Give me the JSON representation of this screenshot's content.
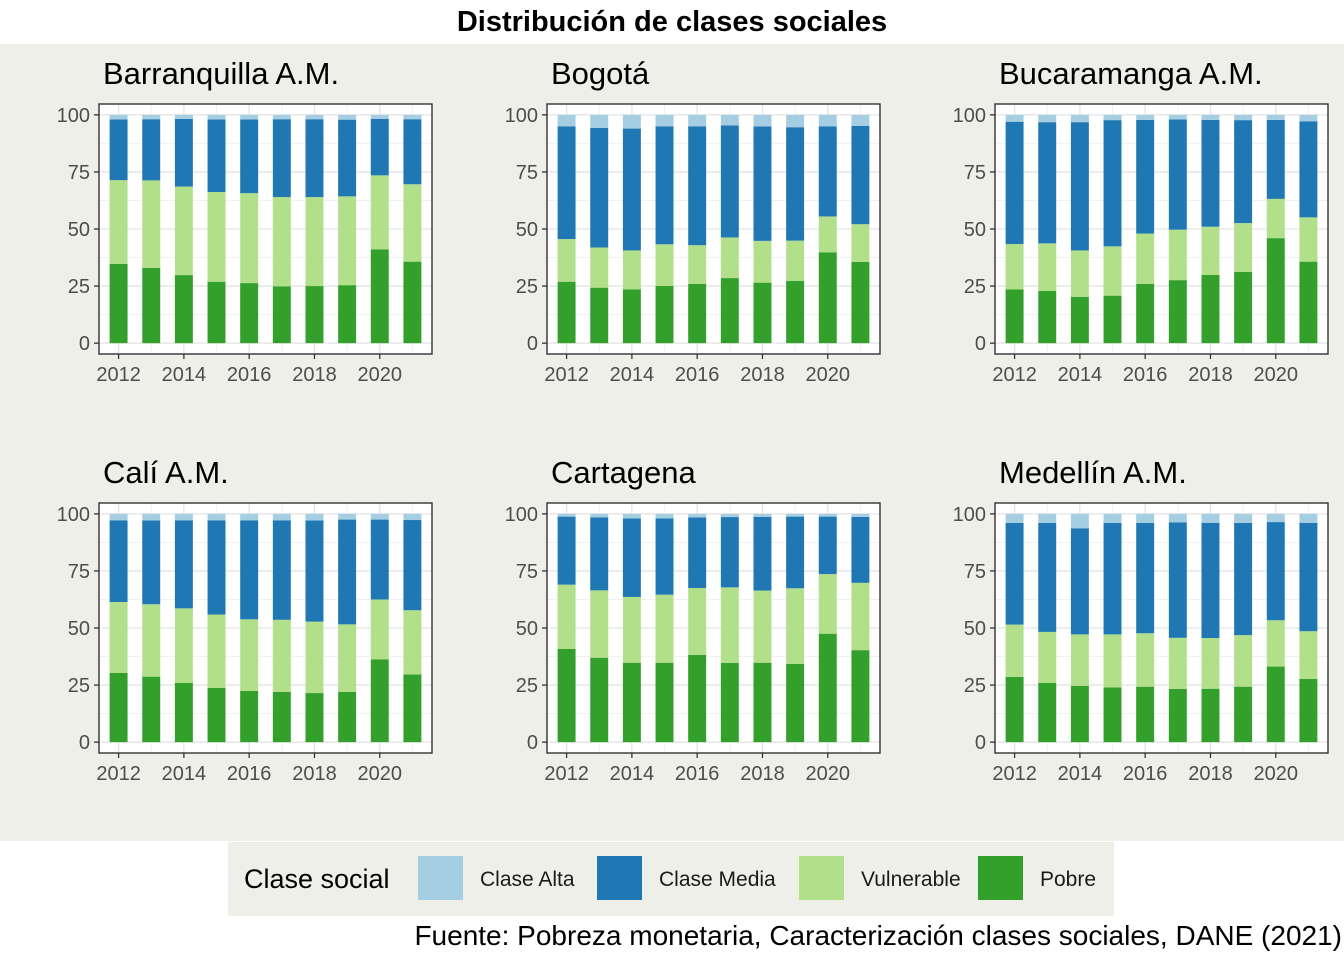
{
  "title": "Distribución de clases sociales",
  "caption": "Fuente: Pobreza monetaria, Caracterización clases sociales, DANE (2021)",
  "legend": {
    "title": "Clase social",
    "items": [
      {
        "label": "Clase Alta",
        "color": "#a6cee3"
      },
      {
        "label": "Clase Media",
        "color": "#1f78b4"
      },
      {
        "label": "Vulnerable",
        "color": "#b2df8a"
      },
      {
        "label": "Pobre",
        "color": "#33a02c"
      }
    ]
  },
  "chart_data": {
    "type": "bar",
    "stacked": true,
    "ylim": [
      0,
      100
    ],
    "yticks": [
      0,
      25,
      50,
      75,
      100
    ],
    "x_years": [
      2012,
      2013,
      2014,
      2015,
      2016,
      2017,
      2018,
      2019,
      2020,
      2021
    ],
    "xticks": [
      2012,
      2014,
      2016,
      2018,
      2020
    ],
    "grid": true,
    "legend_position": "bottom",
    "stack_order_bottom_to_top": [
      "Pobre",
      "Vulnerable",
      "Clase Media",
      "Clase Alta"
    ],
    "facets": [
      {
        "name": "Barranquilla A.M.",
        "series": [
          {
            "name": "Pobre",
            "values": [
              34.7,
              33.0,
              29.8,
              26.9,
              26.3,
              24.9,
              25.0,
              25.4,
              41.1,
              35.7
            ]
          },
          {
            "name": "Vulnerable",
            "values": [
              36.7,
              38.3,
              38.8,
              39.3,
              39.4,
              39.1,
              39.0,
              38.9,
              32.4,
              33.9
            ]
          },
          {
            "name": "Clase Media",
            "values": [
              26.6,
              26.8,
              29.6,
              31.8,
              32.3,
              34.1,
              34.1,
              33.6,
              24.7,
              28.5
            ]
          },
          {
            "name": "Clase Alta",
            "values": [
              2.0,
              1.9,
              1.8,
              2.0,
              2.0,
              1.9,
              1.9,
              2.1,
              1.8,
              1.9
            ]
          }
        ]
      },
      {
        "name": "Bogotá",
        "series": [
          {
            "name": "Pobre",
            "values": [
              26.9,
              24.3,
              23.5,
              25.1,
              25.9,
              28.5,
              26.5,
              27.3,
              39.8,
              35.6
            ]
          },
          {
            "name": "Vulnerable",
            "values": [
              18.7,
              17.6,
              17.1,
              18.2,
              17.0,
              17.8,
              18.3,
              17.6,
              15.7,
              16.5
            ]
          },
          {
            "name": "Clase Media",
            "values": [
              49.4,
              52.4,
              53.4,
              51.7,
              52.1,
              49.1,
              50.1,
              49.7,
              39.5,
              43.1
            ]
          },
          {
            "name": "Clase Alta",
            "values": [
              5.0,
              5.7,
              6.0,
              5.0,
              5.0,
              4.6,
              5.1,
              5.4,
              5.0,
              4.8
            ]
          }
        ]
      },
      {
        "name": "Bucaramanga A.M.",
        "series": [
          {
            "name": "Pobre",
            "values": [
              23.5,
              22.9,
              20.3,
              20.8,
              25.9,
              27.6,
              29.9,
              31.2,
              46.0,
              35.7
            ]
          },
          {
            "name": "Vulnerable",
            "values": [
              19.9,
              20.8,
              20.3,
              21.6,
              22.1,
              22.1,
              21.1,
              21.4,
              17.2,
              19.4
            ]
          },
          {
            "name": "Clase Media",
            "values": [
              53.6,
              53.1,
              56.2,
              55.3,
              49.8,
              48.3,
              46.8,
              45.1,
              34.6,
              42.1
            ]
          },
          {
            "name": "Clase Alta",
            "values": [
              3.0,
              3.2,
              3.2,
              2.3,
              2.2,
              2.0,
              2.2,
              2.3,
              2.2,
              2.8
            ]
          }
        ]
      },
      {
        "name": "Calí A.M.",
        "series": [
          {
            "name": "Pobre",
            "values": [
              30.3,
              28.7,
              26.0,
              23.8,
              22.4,
              22.0,
              21.5,
              22.0,
              36.3,
              29.7
            ]
          },
          {
            "name": "Vulnerable",
            "values": [
              31.1,
              31.7,
              32.6,
              32.1,
              31.4,
              31.6,
              31.3,
              29.6,
              26.2,
              28.1
            ]
          },
          {
            "name": "Clase Media",
            "values": [
              35.8,
              36.7,
              38.6,
              41.3,
              43.4,
              43.6,
              44.3,
              45.9,
              35.0,
              39.5
            ]
          },
          {
            "name": "Clase Alta",
            "values": [
              2.8,
              2.9,
              2.8,
              2.8,
              2.8,
              2.8,
              2.9,
              2.5,
              2.5,
              2.7
            ]
          }
        ]
      },
      {
        "name": "Cartagena",
        "series": [
          {
            "name": "Pobre",
            "values": [
              40.8,
              37.0,
              34.8,
              34.8,
              38.2,
              34.7,
              34.8,
              34.3,
              47.5,
              40.3
            ]
          },
          {
            "name": "Vulnerable",
            "values": [
              28.2,
              29.5,
              28.8,
              29.8,
              29.3,
              33.1,
              31.6,
              33.1,
              26.1,
              29.5
            ]
          },
          {
            "name": "Clase Media",
            "values": [
              29.8,
              32.0,
              34.4,
              33.4,
              31.0,
              30.8,
              32.3,
              31.4,
              25.2,
              28.9
            ]
          },
          {
            "name": "Clase Alta",
            "values": [
              1.2,
              1.5,
              2.0,
              2.0,
              1.5,
              1.4,
              1.3,
              1.2,
              1.2,
              1.3
            ]
          }
        ]
      },
      {
        "name": "Medellín A.M.",
        "series": [
          {
            "name": "Pobre",
            "values": [
              28.6,
              26.0,
              24.7,
              24.0,
              24.3,
              23.3,
              23.4,
              24.3,
              33.1,
              27.7
            ]
          },
          {
            "name": "Vulnerable",
            "values": [
              22.9,
              22.3,
              22.5,
              23.2,
              23.4,
              22.4,
              22.2,
              22.6,
              20.3,
              20.9
            ]
          },
          {
            "name": "Clase Media",
            "values": [
              44.5,
              47.7,
              46.5,
              48.8,
              48.3,
              50.6,
              50.5,
              49.1,
              43.0,
              47.4
            ]
          },
          {
            "name": "Clase Alta",
            "values": [
              4.0,
              4.0,
              6.3,
              4.0,
              4.0,
              3.7,
              3.9,
              4.0,
              3.6,
              4.0
            ]
          }
        ]
      }
    ]
  }
}
